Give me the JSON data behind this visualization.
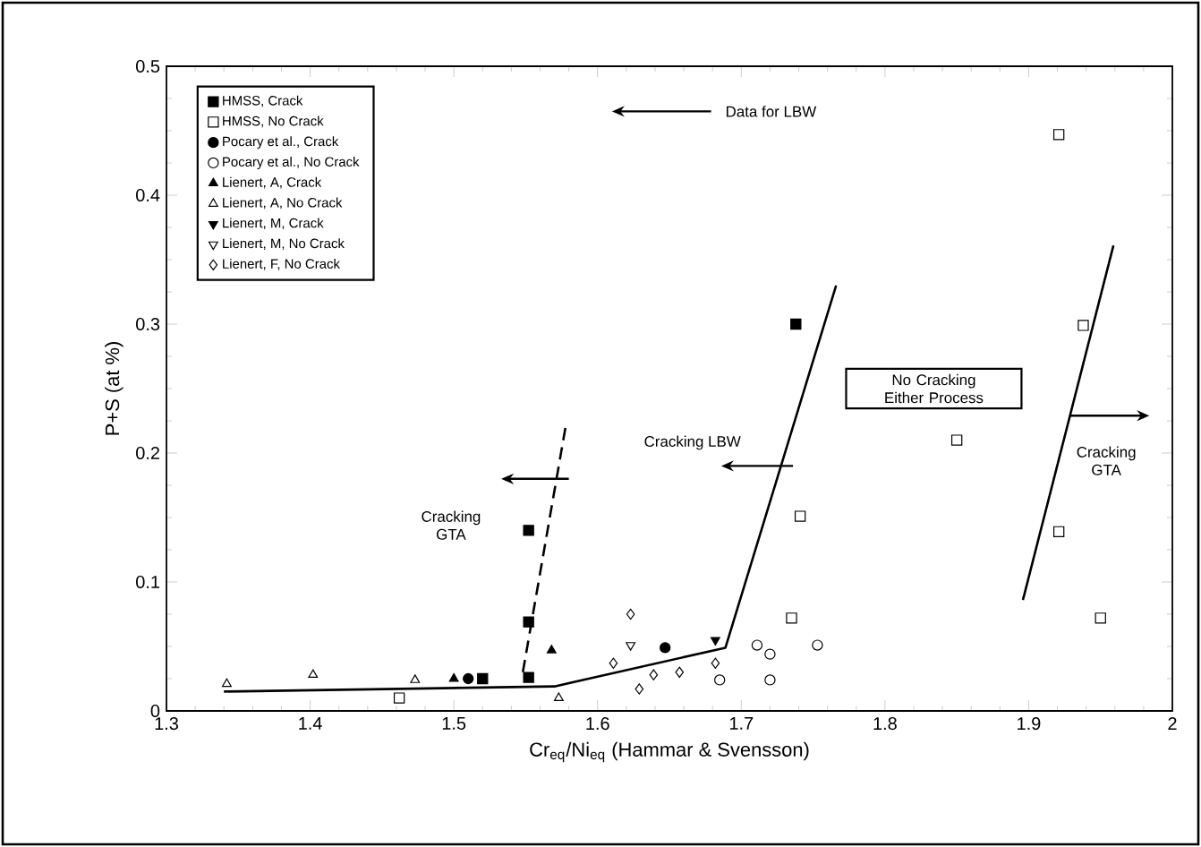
{
  "chart_data": {
    "type": "scatter",
    "xlabel": "Cr$_{eq}$/Ni$_{eq}$ (Hammar & Svensson)",
    "ylabel": "P+S (at %)",
    "xlim": [
      1.3,
      2
    ],
    "ylim": [
      0,
      0.5
    ],
    "xticks": [
      1.3,
      1.4,
      1.5,
      1.6,
      1.7,
      1.8,
      1.9,
      2
    ],
    "yticks": [
      0,
      0.1,
      0.2,
      0.3,
      0.4,
      0.5
    ],
    "grid": false,
    "legend": "top left",
    "series": [
      {
        "name": "HMSS, Crack",
        "color": "#000000",
        "marker": "square",
        "x": [
          1.552,
          1.552,
          1.552,
          1.738,
          1.52
        ],
        "values": [
          0.14,
          0.069,
          0.026,
          0.3,
          0.025
        ]
      },
      {
        "name": "HMSS, No Crack",
        "color": "#000000",
        "marker": "square-open",
        "x": [
          1.921,
          1.938,
          1.85,
          1.741,
          1.921,
          1.735,
          1.95,
          1.462
        ],
        "values": [
          0.447,
          0.299,
          0.21,
          0.151,
          0.139,
          0.072,
          0.072,
          0.01
        ]
      },
      {
        "name": "Pocary et al., Crack",
        "color": "#000000",
        "marker": "circle",
        "x": [
          1.647,
          1.51
        ],
        "values": [
          0.049,
          0.025
        ]
      },
      {
        "name": "Pocary et al., No Crack",
        "color": "#000000",
        "marker": "circle-open",
        "x": [
          1.711,
          1.72,
          1.753,
          1.72,
          1.685
        ],
        "values": [
          0.051,
          0.044,
          0.051,
          0.024,
          0.024
        ]
      },
      {
        "name": "Lienert, A, Crack",
        "color": "#000000",
        "marker": "triangle",
        "x": [
          1.5,
          1.568
        ],
        "values": [
          0.025,
          0.047
        ]
      },
      {
        "name": "Lienert, A, No Crack",
        "color": "#000000",
        "marker": "triangle-open",
        "x": [
          1.342,
          1.402,
          1.473,
          1.573
        ],
        "values": [
          0.021,
          0.028,
          0.024,
          0.01
        ]
      },
      {
        "name": "Lienert, M, Crack",
        "color": "#000000",
        "marker": "triangle-down",
        "x": [
          1.682
        ],
        "values": [
          0.055
        ]
      },
      {
        "name": "Lienert, M, No Crack",
        "color": "#000000",
        "marker": "triangle-down-open",
        "x": [
          1.623
        ],
        "values": [
          0.051
        ]
      },
      {
        "name": "Lienert, F, No Crack",
        "color": "#000000",
        "marker": "diamond-open",
        "x": [
          1.623,
          1.657,
          1.639,
          1.629,
          1.682,
          1.611
        ],
        "values": [
          0.075,
          0.03,
          0.028,
          0.017,
          0.037,
          0.037
        ]
      },
      {
        "type": "line",
        "color": "#000000",
        "marker": "none",
        "line_style": "solid",
        "x": [
          1.34,
          1.57,
          1.689,
          1.766
        ],
        "values": [
          0.015,
          0.019,
          0.049,
          0.33
        ]
      },
      {
        "type": "line",
        "color": "#000000",
        "marker": "none",
        "line_style": "dashed",
        "x": [
          1.548,
          1.578
        ],
        "values": [
          0.03,
          0.222
        ]
      },
      {
        "type": "line",
        "color": "#000000",
        "marker": "none",
        "line_style": "solid",
        "x": [
          1.896,
          1.959
        ],
        "values": [
          0.086,
          0.361
        ]
      }
    ],
    "annotations": [
      "Data for LBW",
      "Cracking LBW",
      "Cracking GTA",
      "No Cracking Either Process",
      "Cracking GTA"
    ]
  }
}
